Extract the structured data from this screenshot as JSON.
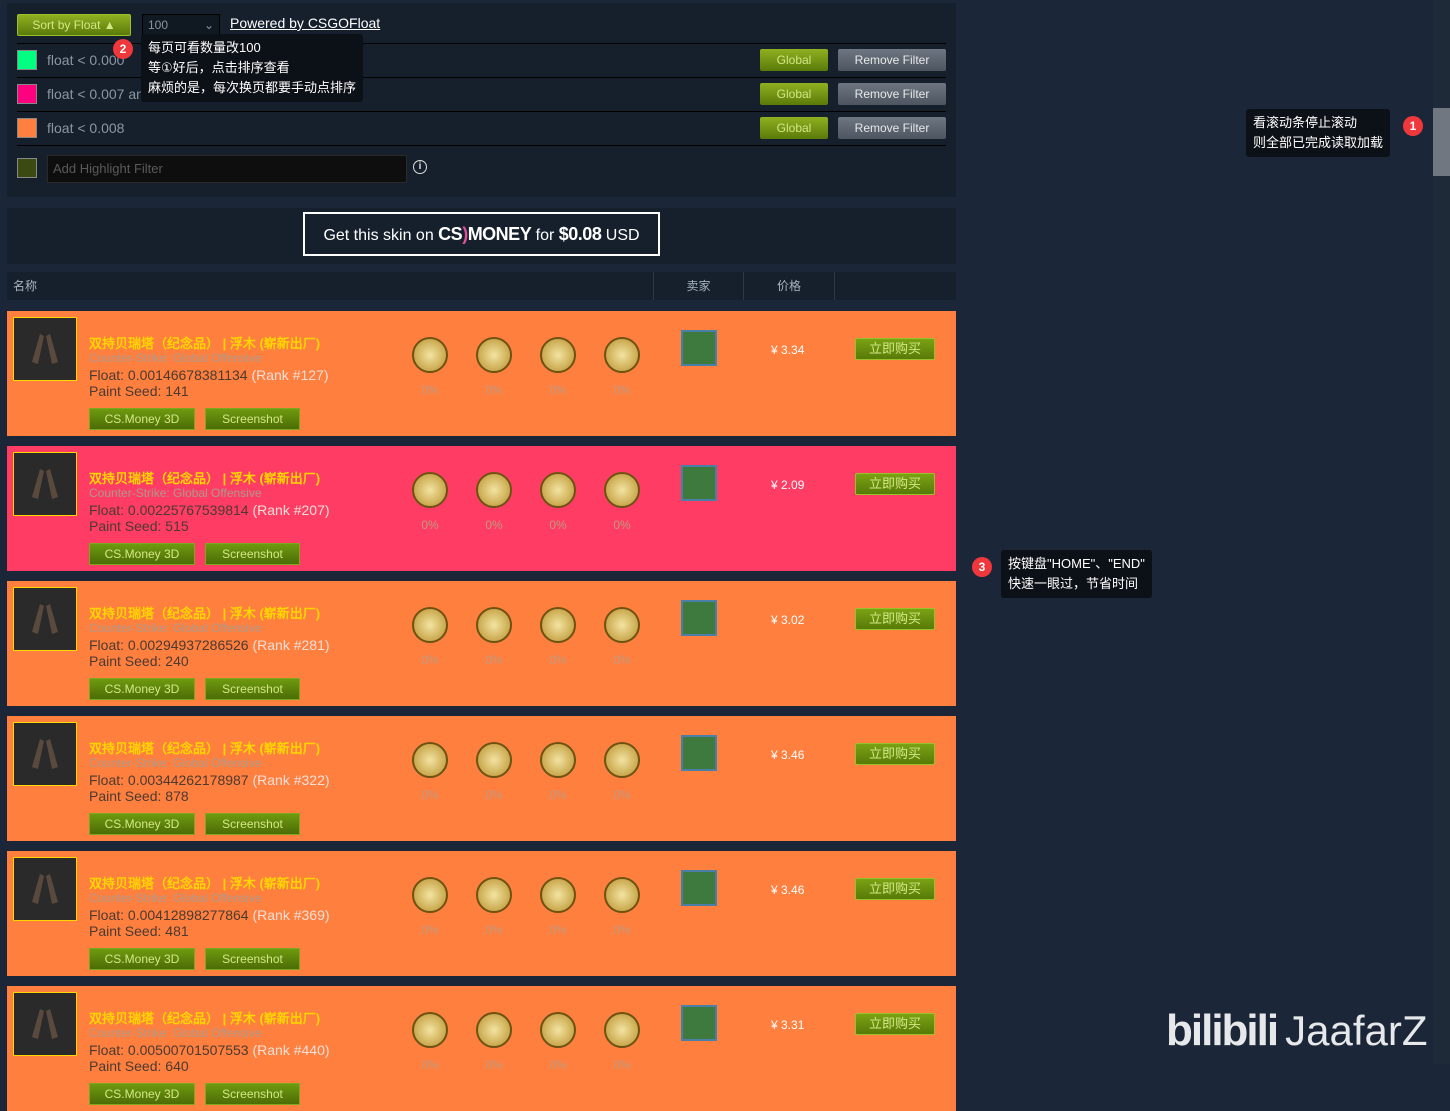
{
  "toolbar": {
    "sort_label": "Sort by Float ▲",
    "page_size": "100",
    "powered_label": "Powered by CSGOFloat"
  },
  "filters": [
    {
      "label": "float < 0.000",
      "color": "#00ff80",
      "global": "Global",
      "remove": "Remove Filter"
    },
    {
      "label": "float < 0.007 and price < 3",
      "color": "#ff0080",
      "global": "Global",
      "remove": "Remove Filter"
    },
    {
      "label": "float < 0.008",
      "color": "#ff7f3f",
      "global": "Global",
      "remove": "Remove Filter"
    }
  ],
  "add_filter": {
    "placeholder": "Add Highlight Filter",
    "color": "#3a4a10",
    "info_icon": "i"
  },
  "banner": {
    "pre": "Get this skin on",
    "brand_a": "CS",
    "brand_b": "MONEY",
    "mid": "for",
    "price": "$0.08",
    "post": "USD"
  },
  "table_headers": {
    "name": "名称",
    "seller": "卖家",
    "price": "价格"
  },
  "row_common": {
    "name": "双持贝瑞塔（纪念品） | 浮木 (崭新出厂)",
    "game": "Counter-Strike: Global Offensive",
    "btn3d": "CS.Money 3D",
    "btnss": "Screenshot",
    "buy": "立即购买",
    "float_prefix": "Float: ",
    "seed_prefix": "Paint Seed: "
  },
  "rows": [
    {
      "float": "0.00146678381134",
      "rank": "(Rank #127)",
      "seed": "141",
      "price": "¥ 3.34",
      "bg": "#ff7f3f",
      "stickers": [
        "heroic",
        "vitality",
        "mirage",
        "mlg"
      ],
      "pcts": [
        "0%",
        "0%",
        "0%",
        "0%"
      ]
    },
    {
      "float": "0.00225767539814",
      "rank": "(Rank #207)",
      "seed": "515",
      "price": "¥ 2.09",
      "bg": "#ff3c64",
      "stickers": [
        "mirage",
        "mlg",
        "navi",
        "gambit"
      ],
      "pcts": [
        "0%",
        "0%",
        "0%",
        "0%"
      ]
    },
    {
      "float": "0.00294937286526",
      "rank": "(Rank #281)",
      "seed": "240",
      "price": "¥ 3.02",
      "bg": "#ff7f3f",
      "stickers": [
        "pgl",
        "g2",
        "mirage",
        "navi"
      ],
      "pcts": [
        "0%",
        "0%",
        "0%",
        "0%"
      ]
    },
    {
      "float": "0.00344262178987",
      "rank": "(Rank #322)",
      "seed": "878",
      "price": "¥ 3.46",
      "bg": "#ff7f3f",
      "stickers": [
        "navi",
        "gambit",
        "mlg",
        "mirage"
      ],
      "pcts": [
        "0%",
        "0%",
        "0%",
        "0%"
      ]
    },
    {
      "float": "0.00412898277864",
      "rank": "(Rank #369)",
      "seed": "481",
      "price": "¥ 3.46",
      "bg": "#ff7f3f",
      "stickers": [
        "pgl",
        "faze",
        "mirage",
        "spirit"
      ],
      "pcts": [
        "0%",
        "0%",
        "0%",
        "0%"
      ]
    },
    {
      "float": "0.00500701507553",
      "rank": "(Rank #440)",
      "seed": "640",
      "price": "¥ 3.31",
      "bg": "#ff7f3f",
      "stickers": [
        "spirit",
        "spirit",
        "mirage",
        "pgl"
      ],
      "pcts": [
        "0%",
        "0%",
        "0%",
        "0%"
      ]
    }
  ],
  "annotations": [
    {
      "num": "2",
      "lines": [
        "每页可看数量改100",
        "等①好后，点击排序查看",
        "麻烦的是，每次换页都要手动点排序"
      ]
    },
    {
      "num": "1",
      "lines": [
        "看滚动条停止滚动",
        "则全部已完成读取加载"
      ]
    },
    {
      "num": "3",
      "lines": [
        "按键盘\"HOME\"、\"END\"",
        "快速一眼过，节省时间"
      ]
    }
  ],
  "watermark": {
    "logo": "bilibili",
    "user": "JaafarZ"
  }
}
